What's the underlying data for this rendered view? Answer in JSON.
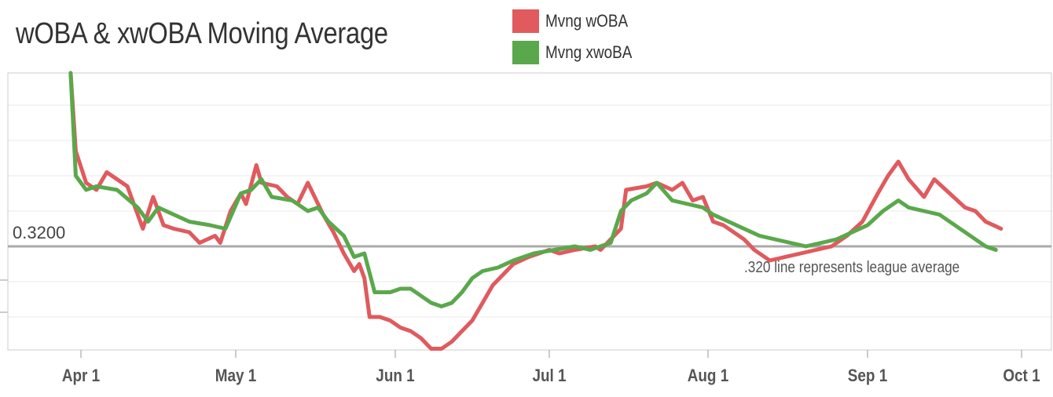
{
  "chart_data": {
    "type": "line",
    "title": "wOBA & xwOBA Moving Average",
    "xlabel": "",
    "ylabel": "",
    "x_ticks": [
      "Apr 1",
      "May 1",
      "Jun 1",
      "Jul 1",
      "Aug 1",
      "Sep 1",
      "Oct 1"
    ],
    "ylim": [
      0.27,
      0.36
    ],
    "reference_line": {
      "value": 0.32,
      "label": "0.3200",
      "annotation": ".320 line represents league average"
    },
    "legend": {
      "placement": "top"
    },
    "grid": true,
    "series": [
      {
        "name": "Mvng wOBA",
        "color": "#e05a5e",
        "points": [
          [
            "2023-03-30",
            0.376
          ],
          [
            "2023-03-31",
            0.347
          ],
          [
            "2023-04-02",
            0.338
          ],
          [
            "2023-04-04",
            0.336
          ],
          [
            "2023-04-06",
            0.341
          ],
          [
            "2023-04-10",
            0.337
          ],
          [
            "2023-04-13",
            0.325
          ],
          [
            "2023-04-15",
            0.334
          ],
          [
            "2023-04-17",
            0.326
          ],
          [
            "2023-04-19",
            0.325
          ],
          [
            "2023-04-22",
            0.324
          ],
          [
            "2023-04-24",
            0.321
          ],
          [
            "2023-04-27",
            0.323
          ],
          [
            "2023-04-28",
            0.321
          ],
          [
            "2023-04-30",
            0.33
          ],
          [
            "2023-05-02",
            0.335
          ],
          [
            "2023-05-03",
            0.332
          ],
          [
            "2023-05-05",
            0.343
          ],
          [
            "2023-05-06",
            0.338
          ],
          [
            "2023-05-09",
            0.337
          ],
          [
            "2023-05-11",
            0.334
          ],
          [
            "2023-05-13",
            0.332
          ],
          [
            "2023-05-15",
            0.338
          ],
          [
            "2023-05-18",
            0.329
          ],
          [
            "2023-05-20",
            0.324
          ],
          [
            "2023-05-22",
            0.318
          ],
          [
            "2023-05-24",
            0.313
          ],
          [
            "2023-05-25",
            0.315
          ],
          [
            "2023-05-26",
            0.311
          ],
          [
            "2023-05-27",
            0.3
          ],
          [
            "2023-05-29",
            0.3
          ],
          [
            "2023-05-31",
            0.299
          ],
          [
            "2023-06-02",
            0.297
          ],
          [
            "2023-06-04",
            0.296
          ],
          [
            "2023-06-06",
            0.294
          ],
          [
            "2023-06-08",
            0.291
          ],
          [
            "2023-06-10",
            0.291
          ],
          [
            "2023-06-12",
            0.293
          ],
          [
            "2023-06-14",
            0.296
          ],
          [
            "2023-06-16",
            0.299
          ],
          [
            "2023-06-18",
            0.304
          ],
          [
            "2023-06-20",
            0.309
          ],
          [
            "2023-06-22",
            0.312
          ],
          [
            "2023-06-24",
            0.315
          ],
          [
            "2023-06-27",
            0.317
          ],
          [
            "2023-07-01",
            0.319
          ],
          [
            "2023-07-03",
            0.318
          ],
          [
            "2023-07-06",
            0.319
          ],
          [
            "2023-07-10",
            0.32
          ],
          [
            "2023-07-11",
            0.319
          ],
          [
            "2023-07-13",
            0.322
          ],
          [
            "2023-07-15",
            0.325
          ],
          [
            "2023-07-16",
            0.336
          ],
          [
            "2023-07-20",
            0.337
          ],
          [
            "2023-07-22",
            0.338
          ],
          [
            "2023-07-25",
            0.336
          ],
          [
            "2023-07-27",
            0.338
          ],
          [
            "2023-07-29",
            0.333
          ],
          [
            "2023-07-31",
            0.334
          ],
          [
            "2023-08-02",
            0.327
          ],
          [
            "2023-08-04",
            0.326
          ],
          [
            "2023-08-06",
            0.324
          ],
          [
            "2023-08-08",
            0.322
          ],
          [
            "2023-08-10",
            0.319
          ],
          [
            "2023-08-13",
            0.316
          ],
          [
            "2023-08-16",
            0.317
          ],
          [
            "2023-08-19",
            0.318
          ],
          [
            "2023-08-22",
            0.319
          ],
          [
            "2023-08-25",
            0.32
          ],
          [
            "2023-08-28",
            0.323
          ],
          [
            "2023-08-31",
            0.327
          ],
          [
            "2023-09-03",
            0.335
          ],
          [
            "2023-09-05",
            0.34
          ],
          [
            "2023-09-07",
            0.344
          ],
          [
            "2023-09-09",
            0.339
          ],
          [
            "2023-09-12",
            0.334
          ],
          [
            "2023-09-14",
            0.339
          ],
          [
            "2023-09-17",
            0.335
          ],
          [
            "2023-09-20",
            0.331
          ],
          [
            "2023-09-22",
            0.33
          ],
          [
            "2023-09-24",
            0.327
          ],
          [
            "2023-09-27",
            0.325
          ]
        ]
      },
      {
        "name": "Mvng xwoBA",
        "color": "#5aa84b",
        "points": [
          [
            "2023-03-30",
            0.376
          ],
          [
            "2023-03-31",
            0.34
          ],
          [
            "2023-04-02",
            0.336
          ],
          [
            "2023-04-04",
            0.337
          ],
          [
            "2023-04-08",
            0.336
          ],
          [
            "2023-04-12",
            0.331
          ],
          [
            "2023-04-14",
            0.327
          ],
          [
            "2023-04-16",
            0.331
          ],
          [
            "2023-04-19",
            0.329
          ],
          [
            "2023-04-22",
            0.327
          ],
          [
            "2023-04-26",
            0.326
          ],
          [
            "2023-04-29",
            0.325
          ],
          [
            "2023-05-02",
            0.335
          ],
          [
            "2023-05-04",
            0.336
          ],
          [
            "2023-05-06",
            0.339
          ],
          [
            "2023-05-08",
            0.334
          ],
          [
            "2023-05-12",
            0.333
          ],
          [
            "2023-05-15",
            0.33
          ],
          [
            "2023-05-17",
            0.331
          ],
          [
            "2023-05-19",
            0.327
          ],
          [
            "2023-05-22",
            0.323
          ],
          [
            "2023-05-24",
            0.317
          ],
          [
            "2023-05-26",
            0.318
          ],
          [
            "2023-05-28",
            0.307
          ],
          [
            "2023-05-31",
            0.307
          ],
          [
            "2023-06-02",
            0.308
          ],
          [
            "2023-06-04",
            0.308
          ],
          [
            "2023-06-06",
            0.306
          ],
          [
            "2023-06-08",
            0.304
          ],
          [
            "2023-06-10",
            0.303
          ],
          [
            "2023-06-12",
            0.304
          ],
          [
            "2023-06-14",
            0.307
          ],
          [
            "2023-06-16",
            0.311
          ],
          [
            "2023-06-18",
            0.313
          ],
          [
            "2023-06-21",
            0.314
          ],
          [
            "2023-06-24",
            0.316
          ],
          [
            "2023-06-28",
            0.318
          ],
          [
            "2023-07-02",
            0.319
          ],
          [
            "2023-07-06",
            0.32
          ],
          [
            "2023-07-09",
            0.319
          ],
          [
            "2023-07-13",
            0.321
          ],
          [
            "2023-07-15",
            0.33
          ],
          [
            "2023-07-17",
            0.333
          ],
          [
            "2023-07-20",
            0.335
          ],
          [
            "2023-07-22",
            0.338
          ],
          [
            "2023-07-25",
            0.333
          ],
          [
            "2023-07-28",
            0.332
          ],
          [
            "2023-07-31",
            0.331
          ],
          [
            "2023-08-02",
            0.329
          ],
          [
            "2023-08-05",
            0.327
          ],
          [
            "2023-08-08",
            0.325
          ],
          [
            "2023-08-11",
            0.323
          ],
          [
            "2023-08-14",
            0.322
          ],
          [
            "2023-08-17",
            0.321
          ],
          [
            "2023-08-20",
            0.32
          ],
          [
            "2023-08-23",
            0.321
          ],
          [
            "2023-08-26",
            0.322
          ],
          [
            "2023-08-29",
            0.324
          ],
          [
            "2023-09-01",
            0.326
          ],
          [
            "2023-09-04",
            0.33
          ],
          [
            "2023-09-07",
            0.333
          ],
          [
            "2023-09-09",
            0.331
          ],
          [
            "2023-09-12",
            0.33
          ],
          [
            "2023-09-15",
            0.329
          ],
          [
            "2023-09-18",
            0.326
          ],
          [
            "2023-09-21",
            0.323
          ],
          [
            "2023-09-24",
            0.32
          ],
          [
            "2023-09-26",
            0.319
          ]
        ]
      }
    ]
  }
}
